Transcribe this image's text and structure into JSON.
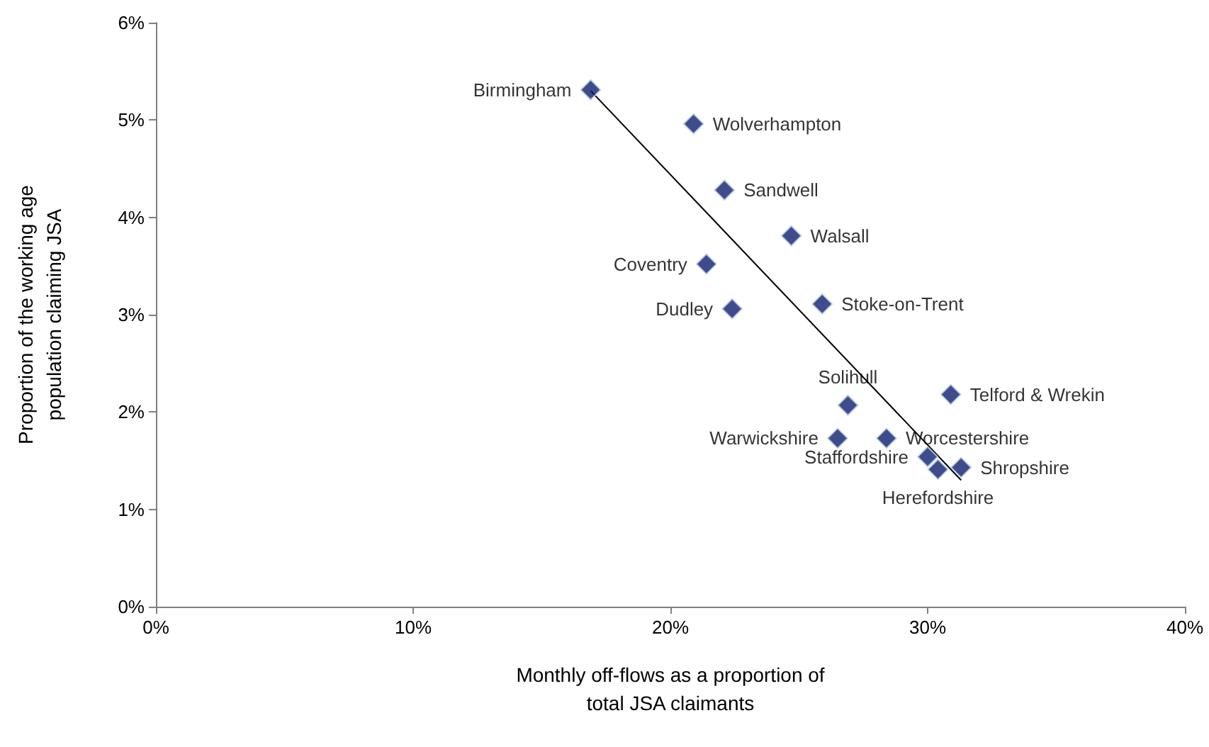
{
  "chart_data": {
    "type": "scatter",
    "xlabel": "Monthly off-flows as a proportion of\ntotal JSA claimants",
    "ylabel": "Proportion of the working age\npopulation claiming JSA",
    "xlim": [
      0,
      40
    ],
    "xticks": [
      {
        "value": 0,
        "label": "0%"
      },
      {
        "value": 10,
        "label": "10%"
      },
      {
        "value": 20,
        "label": "20%"
      },
      {
        "value": 30,
        "label": "30%"
      },
      {
        "value": 40,
        "label": "40%"
      }
    ],
    "ylim": [
      0,
      6
    ],
    "yticks": [
      {
        "value": 0,
        "label": "0%"
      },
      {
        "value": 1,
        "label": "1%"
      },
      {
        "value": 2,
        "label": "2%"
      },
      {
        "value": 3,
        "label": "3%"
      },
      {
        "value": 4,
        "label": "4%"
      },
      {
        "value": 5,
        "label": "5%"
      },
      {
        "value": 6,
        "label": "6%"
      }
    ],
    "grid": false,
    "legend": false,
    "marker": "diamond",
    "series": [
      {
        "name": "Birmingham",
        "color": "#0f1f6e",
        "x": [
          16.9
        ],
        "values": [
          5.31
        ]
      },
      {
        "name": "Wolverhampton",
        "color": "#0f1f6e",
        "x": [
          20.9
        ],
        "values": [
          4.96
        ]
      },
      {
        "name": "Sandwell",
        "color": "#0f1f6e",
        "x": [
          22.1
        ],
        "values": [
          4.28
        ]
      },
      {
        "name": "Walsall",
        "color": "#0f1f6e",
        "x": [
          24.7
        ],
        "values": [
          3.81
        ]
      },
      {
        "name": "Coventry",
        "color": "#0f1f6e",
        "x": [
          21.4
        ],
        "values": [
          3.52
        ]
      },
      {
        "name": "Dudley",
        "color": "#0f1f6e",
        "x": [
          22.4
        ],
        "values": [
          3.06
        ]
      },
      {
        "name": "Stoke-on-Trent",
        "color": "#0f1f6e",
        "x": [
          25.9
        ],
        "values": [
          3.11
        ]
      },
      {
        "name": "Solihull",
        "color": "#0f1f6e",
        "x": [
          26.9
        ],
        "values": [
          2.07
        ]
      },
      {
        "name": "Telford & Wrekin",
        "color": "#0f1f6e",
        "x": [
          30.9
        ],
        "values": [
          2.18
        ]
      },
      {
        "name": "Warwickshire",
        "color": "#0f1f6e",
        "x": [
          26.5
        ],
        "values": [
          1.73
        ]
      },
      {
        "name": "Worcestershire",
        "color": "#0f1f6e",
        "x": [
          28.4
        ],
        "values": [
          1.73
        ]
      },
      {
        "name": "Staffordshire",
        "color": "#0f1f6e",
        "x": [
          30.0
        ],
        "values": [
          1.54
        ]
      },
      {
        "name": "Herefordshire",
        "color": "#0f1f6e",
        "x": [
          30.4
        ],
        "values": [
          1.41
        ]
      },
      {
        "name": "Shropshire",
        "color": "#0f1f6e",
        "x": [
          31.3
        ],
        "values": [
          1.43
        ]
      },
      {
        "type": "line",
        "color": "#000000",
        "marker": "none",
        "line_style": "solid",
        "x": [
          16.9,
          31.3
        ],
        "values": [
          5.3,
          1.3
        ]
      }
    ]
  }
}
